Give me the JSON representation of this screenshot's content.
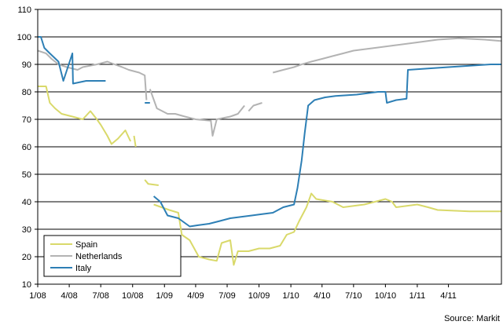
{
  "chart_data": {
    "type": "line",
    "ylim": [
      10,
      110
    ],
    "y_ticks": [
      10,
      20,
      30,
      40,
      50,
      60,
      70,
      80,
      90,
      100,
      110
    ],
    "x_range": [
      "2008-01-01",
      "2011-09-01"
    ],
    "x_ticks": [
      "1/08",
      "4/08",
      "7/08",
      "10/08",
      "1/09",
      "4/09",
      "7/09",
      "10/09",
      "1/10",
      "4/10",
      "7/10",
      "10/10",
      "1/11",
      "4/11"
    ],
    "x_tick_dates": [
      "2008-01-01",
      "2008-04-01",
      "2008-07-01",
      "2008-10-01",
      "2009-01-01",
      "2009-04-01",
      "2009-07-01",
      "2009-10-01",
      "2010-01-01",
      "2010-04-01",
      "2010-07-01",
      "2010-10-01",
      "2011-01-01",
      "2011-04-01"
    ],
    "grid": "horizontal",
    "legend_position": "bottom-left",
    "source": "Source: Markit",
    "series": [
      {
        "name": "Spain",
        "color": "#d9d96a",
        "segments": [
          [
            [
              "2008-01-01",
              82
            ],
            [
              "2008-01-25",
              82
            ],
            [
              "2008-02-05",
              76
            ],
            [
              "2008-02-20",
              74
            ],
            [
              "2008-03-10",
              72
            ],
            [
              "2008-04-10",
              71
            ],
            [
              "2008-05-10",
              70
            ],
            [
              "2008-06-01",
              73
            ],
            [
              "2008-06-20",
              70
            ],
            [
              "2008-07-01",
              68
            ],
            [
              "2008-07-20",
              64
            ],
            [
              "2008-08-01",
              61
            ],
            [
              "2008-08-20",
              63
            ],
            [
              "2008-09-10",
              66
            ],
            [
              "2008-09-25",
              62
            ]
          ],
          [
            [
              "2008-10-05",
              64
            ],
            [
              "2008-10-10",
              60
            ]
          ],
          [
            [
              "2008-11-05",
              48
            ],
            [
              "2008-11-15",
              46.5
            ],
            [
              "2008-12-15",
              46
            ]
          ],
          [
            [
              "2008-12-01",
              39
            ],
            [
              "2009-01-15",
              37
            ],
            [
              "2009-02-10",
              36
            ],
            [
              "2009-02-20",
              28
            ],
            [
              "2009-03-15",
              26
            ],
            [
              "2009-04-10",
              20
            ],
            [
              "2009-05-10",
              19
            ],
            [
              "2009-06-01",
              18.5
            ],
            [
              "2009-06-15",
              25
            ],
            [
              "2009-07-10",
              26
            ],
            [
              "2009-07-20",
              17
            ],
            [
              "2009-08-01",
              22
            ],
            [
              "2009-09-01",
              22
            ],
            [
              "2009-10-01",
              23
            ],
            [
              "2009-11-01",
              23
            ],
            [
              "2009-12-01",
              24
            ],
            [
              "2009-12-20",
              28
            ],
            [
              "2010-01-10",
              29
            ],
            [
              "2010-01-25",
              33
            ],
            [
              "2010-02-15",
              38
            ],
            [
              "2010-03-01",
              43
            ],
            [
              "2010-03-15",
              41
            ],
            [
              "2010-05-01",
              40
            ],
            [
              "2010-06-01",
              38
            ],
            [
              "2010-08-01",
              39
            ],
            [
              "2010-09-01",
              40
            ],
            [
              "2010-10-01",
              41
            ],
            [
              "2010-10-20",
              40
            ],
            [
              "2010-11-01",
              38
            ],
            [
              "2011-01-01",
              39
            ],
            [
              "2011-02-01",
              38
            ],
            [
              "2011-03-01",
              37
            ],
            [
              "2011-06-01",
              36.5
            ],
            [
              "2011-09-01",
              36.5
            ]
          ]
        ]
      },
      {
        "name": "Netherlands",
        "color": "#b3b3b3",
        "segments": [
          [
            [
              "2008-01-01",
              95
            ],
            [
              "2008-01-25",
              94
            ],
            [
              "2008-02-10",
              92
            ],
            [
              "2008-03-01",
              90
            ],
            [
              "2008-03-25",
              89
            ],
            [
              "2008-04-25",
              88
            ],
            [
              "2008-05-10",
              89
            ],
            [
              "2008-06-20",
              90
            ],
            [
              "2008-07-20",
              91
            ],
            [
              "2008-08-10",
              90
            ],
            [
              "2008-09-01",
              89
            ],
            [
              "2008-09-20",
              88
            ],
            [
              "2008-10-20",
              87
            ],
            [
              "2008-11-05",
              86
            ],
            [
              "2008-11-10",
              77
            ]
          ],
          [
            [
              "2008-11-20",
              81
            ],
            [
              "2008-12-10",
              74
            ],
            [
              "2009-01-10",
              72
            ],
            [
              "2009-02-01",
              72
            ],
            [
              "2009-03-01",
              71
            ],
            [
              "2009-04-01",
              70
            ],
            [
              "2009-05-15",
              69.5
            ],
            [
              "2009-05-20",
              64
            ],
            [
              "2009-06-01",
              70
            ],
            [
              "2009-07-10",
              71
            ],
            [
              "2009-08-01",
              72
            ],
            [
              "2009-08-20",
              75
            ]
          ],
          [
            [
              "2009-09-01",
              73
            ],
            [
              "2009-09-15",
              75
            ],
            [
              "2009-10-10",
              76
            ]
          ],
          [
            [
              "2009-11-10",
              87
            ],
            [
              "2009-12-10",
              88
            ],
            [
              "2010-01-10",
              89
            ],
            [
              "2010-02-01",
              90
            ],
            [
              "2010-03-01",
              91
            ],
            [
              "2010-04-01",
              92
            ],
            [
              "2010-05-01",
              93
            ],
            [
              "2010-06-01",
              94
            ],
            [
              "2010-07-01",
              95
            ],
            [
              "2010-09-01",
              96
            ],
            [
              "2010-11-01",
              97
            ],
            [
              "2011-01-01",
              98
            ],
            [
              "2011-03-01",
              99
            ],
            [
              "2011-05-01",
              99.5
            ],
            [
              "2011-07-15",
              99
            ],
            [
              "2011-09-01",
              98.5
            ]
          ]
        ]
      },
      {
        "name": "Italy",
        "color": "#2d7fb5",
        "segments": [
          [
            [
              "2008-01-01",
              100
            ],
            [
              "2008-01-10",
              100
            ],
            [
              "2008-01-20",
              96
            ],
            [
              "2008-02-05",
              94
            ],
            [
              "2008-03-01",
              91
            ],
            [
              "2008-03-15",
              84
            ],
            [
              "2008-04-10",
              94
            ],
            [
              "2008-04-12",
              83
            ],
            [
              "2008-05-20",
              84
            ],
            [
              "2008-07-15",
              84
            ]
          ],
          [
            [
              "2008-11-05",
              76
            ],
            [
              "2008-11-20",
              76
            ]
          ],
          [
            [
              "2008-12-01",
              42
            ],
            [
              "2008-12-20",
              40
            ],
            [
              "2009-01-10",
              35
            ],
            [
              "2009-02-10",
              34
            ],
            [
              "2009-03-15",
              31
            ],
            [
              "2009-04-10",
              31.5
            ],
            [
              "2009-05-10",
              32
            ],
            [
              "2009-06-10",
              33
            ],
            [
              "2009-07-10",
              34
            ],
            [
              "2009-08-10",
              34.5
            ],
            [
              "2009-09-10",
              35
            ],
            [
              "2009-10-10",
              35.5
            ],
            [
              "2009-11-10",
              36
            ],
            [
              "2009-12-10",
              38
            ],
            [
              "2010-01-10",
              39
            ],
            [
              "2010-01-20",
              45
            ],
            [
              "2010-02-01",
              55
            ],
            [
              "2010-02-10",
              65
            ],
            [
              "2010-02-20",
              75
            ],
            [
              "2010-03-10",
              77
            ],
            [
              "2010-04-10",
              78
            ],
            [
              "2010-05-10",
              78.5
            ],
            [
              "2010-07-10",
              79
            ],
            [
              "2010-09-10",
              80
            ],
            [
              "2010-10-01",
              80
            ],
            [
              "2010-10-05",
              76
            ],
            [
              "2010-11-01",
              77
            ],
            [
              "2010-12-01",
              77.5
            ],
            [
              "2010-12-05",
              88
            ],
            [
              "2011-02-01",
              88.5
            ],
            [
              "2011-04-01",
              89
            ],
            [
              "2011-06-01",
              89.5
            ],
            [
              "2011-08-01",
              90
            ],
            [
              "2011-09-01",
              90
            ]
          ]
        ]
      }
    ]
  }
}
